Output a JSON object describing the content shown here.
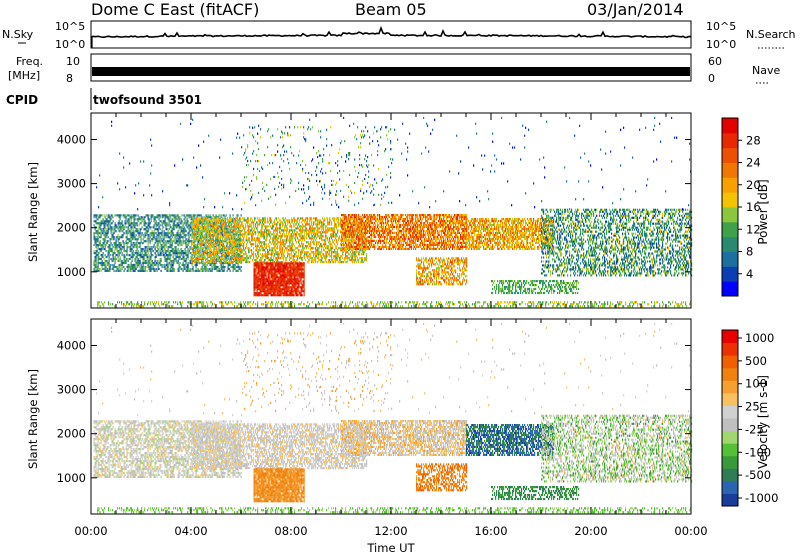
{
  "header": {
    "station": "Dome C East (fitACF)",
    "beam": "Beam 05",
    "date": "03/Jan/2014"
  },
  "nsky": {
    "label": "N.Sky",
    "tick_top": "10^5",
    "tick_bottom": "10^0",
    "right_tick_top": "10^5",
    "right_tick_bottom": "10^0",
    "right_label": "N.Search"
  },
  "freq": {
    "label_line1": "Freq.",
    "label_line2": "[MHz]",
    "tick_top": "10",
    "tick_bottom": "8",
    "right_tick_top": "60",
    "right_tick_bottom": "0",
    "right_label": "Nave"
  },
  "cpid": {
    "label": "CPID",
    "program": "twofsound 3501"
  },
  "chart_data": [
    {
      "type": "heatmap",
      "parameter": "Power",
      "ylabel": "Slant Range [km]",
      "xlabel": "",
      "yticks": [
        "4000",
        "3000",
        "2000",
        "1000"
      ],
      "ytick_values": [
        4000,
        3000,
        2000,
        1000
      ],
      "ylim": [
        180,
        4600
      ],
      "xlim_hours": [
        0,
        24
      ],
      "colorbar": {
        "label": "Power [dB]",
        "ticks": [
          "28",
          "24",
          "20",
          "16",
          "12",
          "8",
          "4"
        ],
        "tick_values": [
          28,
          24,
          20,
          16,
          12,
          8,
          4
        ],
        "range": [
          0,
          32
        ],
        "colors": [
          "#0000ff",
          "#0a3fb4",
          "#1d6fa0",
          "#2a8a70",
          "#3fa24a",
          "#8cc63f",
          "#f2c300",
          "#f8a000",
          "#f07800",
          "#ec5000",
          "#e82800",
          "#e00000"
        ]
      }
    },
    {
      "type": "heatmap",
      "parameter": "Velocity",
      "ylabel": "Slant Range [km]",
      "xlabel": "Time UT",
      "yticks": [
        "4000",
        "3000",
        "2000",
        "1000"
      ],
      "ytick_values": [
        4000,
        3000,
        2000,
        1000
      ],
      "ylim": [
        180,
        4600
      ],
      "xlim_hours": [
        0,
        24
      ],
      "xticks": [
        "00:00",
        "04:00",
        "08:00",
        "12:00",
        "16:00",
        "20:00",
        "00:00"
      ],
      "xtick_hours": [
        0,
        4,
        8,
        12,
        16,
        20,
        24
      ],
      "colorbar": {
        "label": "Velocity [m s-1]",
        "ticks": [
          "1000",
          "500",
          "100",
          "25",
          "-25",
          "-100",
          "-500",
          "-1000"
        ],
        "tick_values": [
          1000,
          500,
          100,
          25,
          -25,
          -100,
          -500,
          -1000
        ],
        "colors": [
          "#1a3d9a",
          "#2a66b0",
          "#2e7d55",
          "#3a9a3a",
          "#55c035",
          "#9fd870",
          "#bfbfbf",
          "#d0d0d0",
          "#f7c060",
          "#f5a030",
          "#f08010",
          "#f06000",
          "#ec3000",
          "#e80000"
        ]
      }
    }
  ]
}
